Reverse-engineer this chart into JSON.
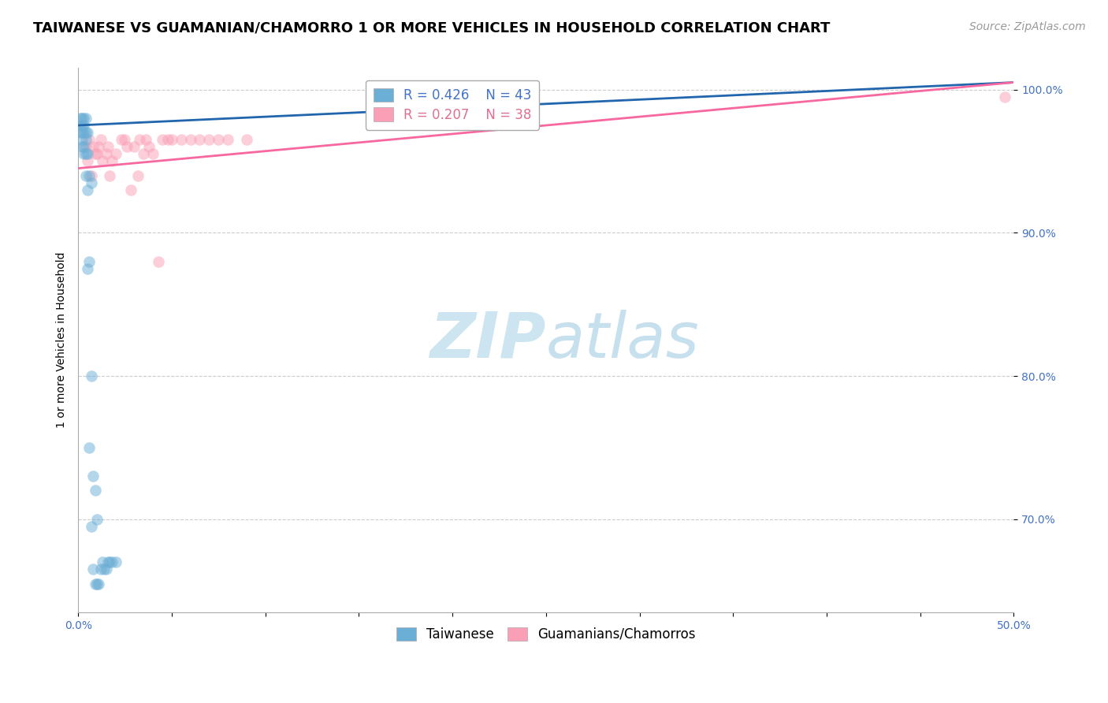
{
  "title": "TAIWANESE VS GUAMANIAN/CHAMORRO 1 OR MORE VEHICLES IN HOUSEHOLD CORRELATION CHART",
  "source": "Source: ZipAtlas.com",
  "ylabel": "1 or more Vehicles in Household",
  "xlim": [
    0.0,
    0.5
  ],
  "ylim": [
    0.635,
    1.015
  ],
  "xticks": [
    0.0,
    0.05,
    0.1,
    0.15,
    0.2,
    0.25,
    0.3,
    0.35,
    0.4,
    0.45,
    0.5
  ],
  "xticklabels": [
    "0.0%",
    "",
    "",
    "",
    "",
    "",
    "",
    "",
    "",
    "",
    "50.0%"
  ],
  "ytick_positions": [
    0.7,
    0.8,
    0.9,
    1.0
  ],
  "ytick_labels": [
    "70.0%",
    "80.0%",
    "90.0%",
    "100.0%"
  ],
  "taiwanese_color": "#6baed6",
  "guamanian_color": "#fa9fb5",
  "taiwanese_line_color": "#2166ac",
  "guamanian_line_color": "#f768a1",
  "background_color": "#ffffff",
  "watermark_color": "#cce5f0",
  "grid_color": "#cccccc",
  "taiwanese_x": [
    0.001,
    0.001,
    0.001,
    0.002,
    0.002,
    0.002,
    0.002,
    0.002,
    0.003,
    0.003,
    0.003,
    0.003,
    0.003,
    0.004,
    0.004,
    0.004,
    0.004,
    0.004,
    0.005,
    0.005,
    0.005,
    0.005,
    0.006,
    0.006,
    0.006,
    0.007,
    0.007,
    0.007,
    0.008,
    0.008,
    0.009,
    0.009,
    0.01,
    0.01,
    0.011,
    0.012,
    0.013,
    0.014,
    0.015,
    0.016,
    0.017,
    0.018,
    0.02
  ],
  "taiwanese_y": [
    0.97,
    0.975,
    0.98,
    0.96,
    0.965,
    0.97,
    0.975,
    0.98,
    0.955,
    0.96,
    0.97,
    0.975,
    0.98,
    0.94,
    0.955,
    0.965,
    0.97,
    0.98,
    0.875,
    0.93,
    0.955,
    0.97,
    0.75,
    0.88,
    0.94,
    0.695,
    0.8,
    0.935,
    0.665,
    0.73,
    0.655,
    0.72,
    0.655,
    0.7,
    0.655,
    0.665,
    0.67,
    0.665,
    0.665,
    0.67,
    0.67,
    0.67,
    0.67
  ],
  "guamanian_x": [
    0.004,
    0.005,
    0.006,
    0.007,
    0.008,
    0.009,
    0.01,
    0.011,
    0.012,
    0.013,
    0.015,
    0.016,
    0.017,
    0.018,
    0.02,
    0.023,
    0.025,
    0.026,
    0.028,
    0.03,
    0.032,
    0.033,
    0.035,
    0.036,
    0.038,
    0.04,
    0.043,
    0.045,
    0.048,
    0.05,
    0.055,
    0.06,
    0.065,
    0.07,
    0.075,
    0.08,
    0.09,
    0.495
  ],
  "guamanian_y": [
    0.96,
    0.95,
    0.965,
    0.94,
    0.96,
    0.955,
    0.955,
    0.96,
    0.965,
    0.95,
    0.955,
    0.96,
    0.94,
    0.95,
    0.955,
    0.965,
    0.965,
    0.96,
    0.93,
    0.96,
    0.94,
    0.965,
    0.955,
    0.965,
    0.96,
    0.955,
    0.88,
    0.965,
    0.965,
    0.965,
    0.965,
    0.965,
    0.965,
    0.965,
    0.965,
    0.965,
    0.965,
    0.995
  ],
  "taiwanese_trend_x": [
    0.0,
    0.5
  ],
  "taiwanese_trend_y": [
    0.975,
    1.005
  ],
  "guamanian_trend_x": [
    0.0,
    0.5
  ],
  "guamanian_trend_y": [
    0.945,
    1.005
  ],
  "dot_size": 110,
  "dot_alpha": 0.5,
  "title_fontsize": 13,
  "axis_label_fontsize": 10,
  "tick_fontsize": 10,
  "legend_fontsize": 12,
  "source_fontsize": 10
}
